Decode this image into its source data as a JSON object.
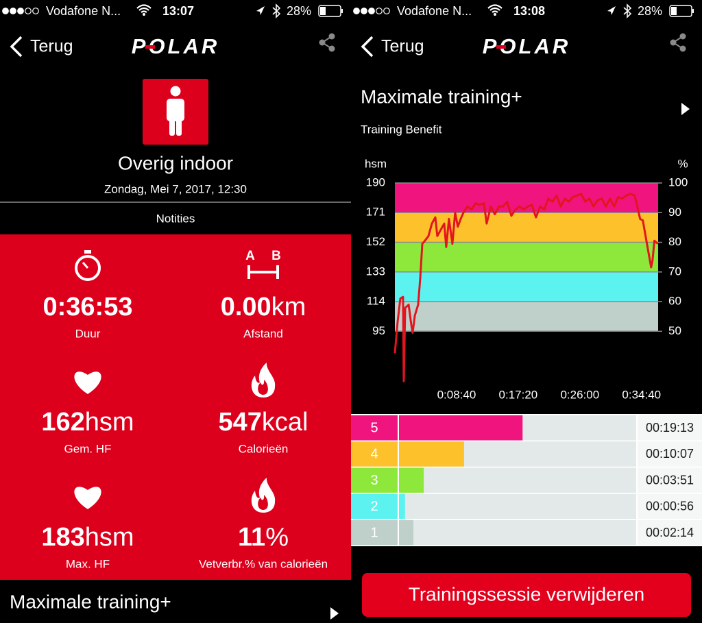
{
  "left": {
    "status_bar": {
      "carrier": "Vodafone N...",
      "time": "13:07",
      "battery": "28%"
    },
    "nav": {
      "back": "Terug",
      "logo": "POLAR"
    },
    "activity": {
      "title": "Overig indoor",
      "date": "Zondag, Mei 7, 2017, 12:30"
    },
    "notes": "Notities",
    "stats": [
      {
        "value": "0:36:53",
        "label": "Duur"
      },
      {
        "value": "0.00",
        "unit": "km",
        "label": "Afstand",
        "icon_labels": [
          "A",
          "B"
        ]
      },
      {
        "value": "162",
        "unit": "hsm",
        "label": "Gem. HF"
      },
      {
        "value": "547",
        "unit": "kcal",
        "label": "Calorieën"
      },
      {
        "value": "183",
        "unit": "hsm",
        "label": "Max. HF"
      },
      {
        "value": "11",
        "unit": "%",
        "label": "Vetverbr.% van calorieën"
      }
    ],
    "footer": "Maximale training+"
  },
  "right": {
    "status_bar": {
      "carrier": "Vodafone N...",
      "time": "13:08",
      "battery": "28%"
    },
    "nav": {
      "back": "Terug",
      "logo": "POLAR"
    },
    "title": "Maximale training+",
    "subtitle": "Training Benefit",
    "chart": {
      "type": "line",
      "y_label": "hsm",
      "y2_label": "%",
      "color": "#e2151f",
      "x": [
        0,
        23,
        46,
        69,
        75,
        87,
        116,
        139,
        150,
        168,
        196,
        214,
        231,
        254,
        283,
        312,
        341,
        358,
        387,
        416,
        433,
        456,
        485,
        508,
        531,
        555,
        578,
        612,
        647,
        681,
        716,
        751,
        774,
        809,
        843,
        878,
        913,
        947,
        982,
        1017,
        1051,
        1086,
        1121,
        1155,
        1190,
        1225,
        1259,
        1294,
        1329,
        1363,
        1398,
        1433,
        1467,
        1502,
        1537,
        1571,
        1606,
        1641,
        1675,
        1710,
        1745,
        1779,
        1814,
        1849,
        1883,
        1918,
        1953,
        1987,
        2022,
        2045,
        2068,
        2091,
        2126,
        2161,
        2172,
        2189,
        2218
      ],
      "values": [
        81,
        101,
        116,
        117,
        63,
        110,
        112,
        99,
        94,
        105,
        112,
        129,
        151,
        153,
        156,
        164,
        168,
        156,
        160,
        164,
        149,
        167,
        151,
        171,
        162,
        167,
        171,
        175,
        173,
        177,
        176,
        177,
        164,
        175,
        170,
        175,
        175,
        178,
        169,
        173,
        175,
        173,
        175,
        176,
        168,
        175,
        173,
        180,
        178,
        182,
        175,
        180,
        178,
        181,
        182,
        183,
        178,
        180,
        175,
        179,
        180,
        175,
        180,
        175,
        181,
        180,
        182,
        183,
        182,
        175,
        167,
        166,
        151,
        136,
        140,
        153,
        151
      ],
      "xlim": [
        0,
        2220
      ],
      "xticks": [
        {
          "value": 520,
          "label": "0:08:40"
        },
        {
          "value": 1040,
          "label": "0:17:20"
        },
        {
          "value": 1560,
          "label": "0:26:00"
        },
        {
          "value": 2080,
          "label": "0:34:40"
        }
      ],
      "ylim": [
        60,
        190
      ],
      "yticks": [
        95,
        114,
        133,
        152,
        171,
        190
      ],
      "y2lim": [
        31.6,
        100
      ],
      "y2ticks": [
        50,
        60,
        70,
        80,
        90,
        100
      ],
      "zones": [
        {
          "lower": 95,
          "upper": 114,
          "color": "#bfcfca"
        },
        {
          "lower": 114,
          "upper": 133,
          "color": "#5cf2f0"
        },
        {
          "lower": 133,
          "upper": 152,
          "color": "#8ee83c"
        },
        {
          "lower": 152,
          "upper": 171,
          "color": "#fdc12c"
        },
        {
          "lower": 171,
          "upper": 190,
          "color": "#f0147e"
        }
      ],
      "grid": true
    },
    "zones": {
      "names": [
        "5",
        "4",
        "3",
        "2",
        "1"
      ],
      "values": [
        1153,
        607,
        231,
        56,
        134
      ],
      "value_labels": [
        "00:19:13",
        "00:10:07",
        "00:03:51",
        "00:00:56",
        "00:02:14"
      ],
      "colors": [
        "#f0147e",
        "#fdc12c",
        "#8ee83c",
        "#5cf2f0",
        "#bfcfca"
      ],
      "xlim": [
        0,
        2213
      ]
    },
    "delete": "Trainingssessie verwijderen"
  }
}
